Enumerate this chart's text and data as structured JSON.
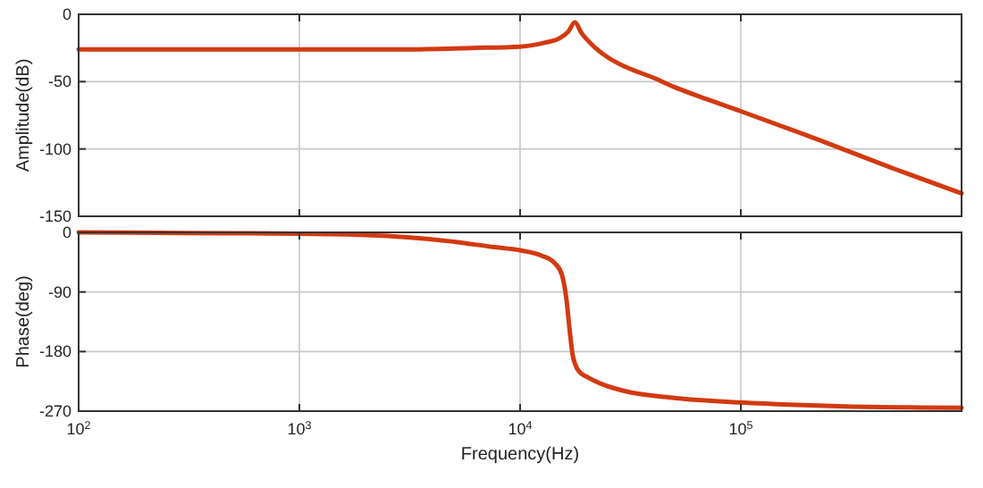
{
  "chart_data": [
    {
      "type": "line",
      "ylabel": "Amplitude(dB)",
      "log": "x",
      "grid": true,
      "tick_labels": "y",
      "xlim": [
        100,
        1000000
      ],
      "xticks": [
        {
          "value": 100,
          "label": null
        },
        {
          "value": 1000,
          "label": null
        },
        {
          "value": 10000,
          "label": null
        },
        {
          "value": 100000,
          "label": null
        }
      ],
      "ylim": [
        -150,
        0
      ],
      "yticks": [
        -150,
        -100,
        -50,
        0
      ],
      "series": [
        {
          "color": "#d23a12",
          "x": [
            100,
            1000,
            3000,
            6000,
            10000,
            13000,
            15000,
            16500,
            17700,
            19000,
            21000,
            25000,
            30000,
            40000,
            50000,
            70000,
            100000,
            200000,
            500000,
            1000000
          ],
          "values": [
            -26,
            -26,
            -26,
            -25,
            -24,
            -21,
            -18,
            -13,
            -6,
            -14,
            -22,
            -32,
            -39,
            -47,
            -54,
            -63,
            -72,
            -90,
            -115,
            -133
          ]
        }
      ]
    },
    {
      "type": "line",
      "xlabel": "Frequency(Hz)",
      "ylabel": "Phase(deg)",
      "log": "x",
      "grid": true,
      "xlim": [
        100,
        1000000
      ],
      "xticks": [
        {
          "value": 100,
          "label": "10$^{2}$"
        },
        {
          "value": 1000,
          "label": "10$^{3}$"
        },
        {
          "value": 10000,
          "label": "10$^{4}$"
        },
        {
          "value": 100000,
          "label": "10$^{5}$"
        }
      ],
      "ylim": [
        -270,
        0
      ],
      "yticks": [
        {
          "value": -270,
          "label": "-270"
        },
        {
          "value": -180,
          "label": "-180"
        },
        {
          "value": -90,
          "label": "-90"
        },
        {
          "value": 0,
          "label": "0"
        }
      ],
      "series": [
        {
          "color": "#d23a12",
          "x": [
            100,
            300,
            1000,
            2000,
            3000,
            5000,
            7500,
            10000,
            12500,
            14500,
            15500,
            16200,
            16800,
            17300,
            17800,
            18500,
            20000,
            23000,
            30000,
            50000,
            100000,
            300000,
            1000000
          ],
          "values": [
            0,
            -1,
            -2,
            -4,
            -7,
            -14,
            -22,
            -27,
            -35,
            -48,
            -65,
            -100,
            -150,
            -185,
            -200,
            -210,
            -218,
            -228,
            -240,
            -250,
            -257,
            -263,
            -265
          ]
        }
      ]
    }
  ]
}
